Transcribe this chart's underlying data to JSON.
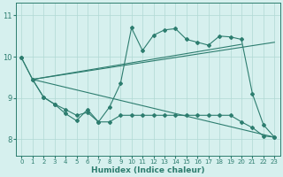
{
  "title": "",
  "xlabel": "Humidex (Indice chaleur)",
  "ylabel": "",
  "bg_color": "#d6f0ee",
  "line_color": "#2d7d6f",
  "grid_color": "#b0d8d4",
  "xlim": [
    -0.5,
    23.5
  ],
  "ylim": [
    7.6,
    11.3
  ],
  "yticks": [
    8,
    9,
    10,
    11
  ],
  "xticks": [
    0,
    1,
    2,
    3,
    4,
    5,
    6,
    7,
    8,
    9,
    10,
    11,
    12,
    13,
    14,
    15,
    16,
    17,
    18,
    19,
    20,
    21,
    22,
    23
  ],
  "line_max": {
    "x": [
      0,
      1,
      2,
      3,
      4,
      5,
      6,
      7,
      8,
      9,
      10,
      11,
      12,
      13,
      14,
      15,
      16,
      17,
      18,
      19,
      20,
      21,
      22,
      23
    ],
    "y": [
      9.97,
      9.45,
      9.02,
      8.85,
      8.72,
      8.58,
      8.65,
      8.42,
      8.78,
      9.35,
      10.7,
      10.15,
      10.52,
      10.65,
      10.68,
      10.42,
      10.35,
      10.28,
      10.5,
      10.48,
      10.42,
      9.1,
      8.35,
      8.05
    ]
  },
  "line_min": {
    "x": [
      0,
      1,
      2,
      3,
      4,
      5,
      6,
      7,
      8,
      9,
      10,
      11,
      12,
      13,
      14,
      15,
      16,
      17,
      18,
      19,
      20,
      21,
      22,
      23
    ],
    "y": [
      9.97,
      9.45,
      9.02,
      8.85,
      8.62,
      8.45,
      8.72,
      8.42,
      8.42,
      8.58,
      8.58,
      8.58,
      8.58,
      8.58,
      8.58,
      8.58,
      8.58,
      8.58,
      8.58,
      8.58,
      8.42,
      8.28,
      8.08,
      8.05
    ]
  },
  "line_upper": {
    "x": [
      0,
      1,
      20
    ],
    "y": [
      9.45,
      9.45,
      10.3
    ]
  },
  "line_lower": {
    "x": [
      0,
      1,
      23
    ],
    "y": [
      9.45,
      9.45,
      8.05
    ]
  },
  "line_upper2": {
    "x": [
      0,
      1,
      23
    ],
    "y": [
      9.45,
      9.45,
      10.35
    ]
  }
}
